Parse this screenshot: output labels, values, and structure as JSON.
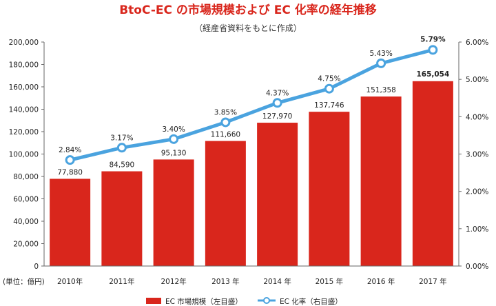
{
  "chart_data": {
    "type": "bar+line",
    "title": "BtoC-EC の市場規模および EC 化率の経年推移",
    "subtitle": "（経産省資料をもとに作成）",
    "categories": [
      "2010年",
      "2011年",
      "2012年",
      "2013 年",
      "2014 年",
      "2015 年",
      "2016 年",
      "2017 年"
    ],
    "unit_label": "(単位：億円)",
    "series": [
      {
        "name": "EC 市場規模（左目盛）",
        "type": "bar",
        "axis": "left",
        "values": [
          77880,
          84590,
          95130,
          111660,
          127970,
          137746,
          151358,
          165054
        ],
        "labels": [
          "77,880",
          "84,590",
          "95,130",
          "111,660",
          "127,970",
          "137,746",
          "151,358",
          "165,054"
        ],
        "color": "#d9261c"
      },
      {
        "name": "EC 化率（右目盛）",
        "type": "line",
        "axis": "right",
        "values": [
          2.84,
          3.17,
          3.4,
          3.85,
          4.37,
          4.75,
          5.43,
          5.79
        ],
        "labels": [
          "2.84%",
          "3.17%",
          "3.40%",
          "3.85%",
          "4.37%",
          "4.75%",
          "5.43%",
          "5.79%"
        ],
        "color": "#4aa3df"
      }
    ],
    "y_left": {
      "range": [
        0,
        200000
      ],
      "ticks": [
        "0",
        "20,000",
        "40,000",
        "60,000",
        "80,000",
        "100,000",
        "120,000",
        "140,000",
        "160,000",
        "180,000",
        "200,000"
      ]
    },
    "y_right": {
      "range": [
        0,
        6
      ],
      "ticks": [
        "0.00%",
        "1.00%",
        "2.00%",
        "3.00%",
        "4.00%",
        "5.00%",
        "6.00%"
      ]
    },
    "highlight_color": "#d9261c",
    "grid": false,
    "legend_position": "bottom"
  }
}
